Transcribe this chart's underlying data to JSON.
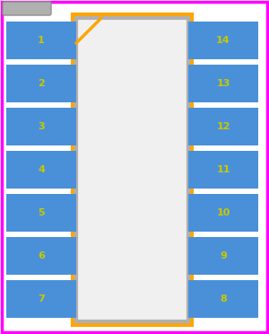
{
  "background": "#ffffff",
  "border_color": "#ff00ff",
  "fig_width": 3.0,
  "fig_height": 3.72,
  "dpi": 100,
  "body_fill": "#f0f0f0",
  "body_edge": "#b0b0b0",
  "body_lw": 3.0,
  "copper_color": "#ffa500",
  "copper_lw": 3.0,
  "pin_fill": "#4a90d9",
  "pin_text_color": "#c8c800",
  "pin_fontsize": 8,
  "left_pins": [
    1,
    2,
    3,
    4,
    5,
    6,
    7
  ],
  "right_pins": [
    14,
    13,
    12,
    11,
    10,
    9,
    8
  ],
  "ref_bar_fill": "#b0b0b0",
  "ref_bar_edge": "#909090"
}
